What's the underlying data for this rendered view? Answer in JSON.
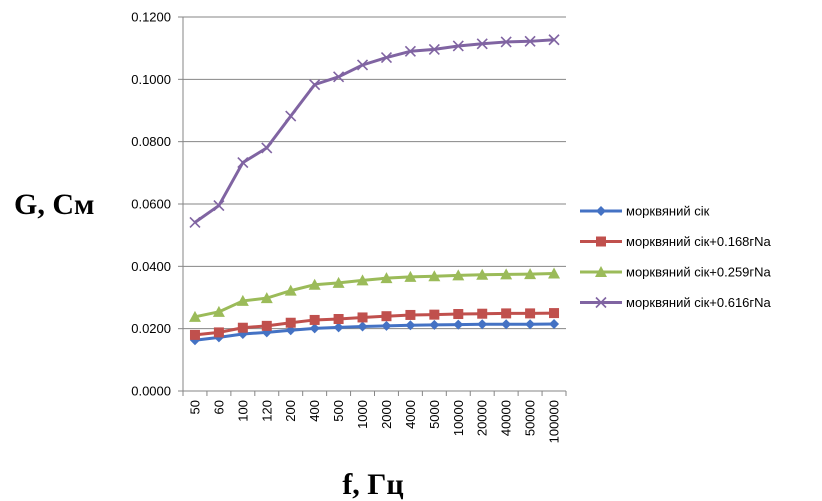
{
  "chart_data": {
    "type": "line",
    "title": "",
    "xlabel": "f, Гц",
    "ylabel": "G, См",
    "ylim": [
      0,
      0.12
    ],
    "yticks": [
      "0.0000",
      "0.0200",
      "0.0400",
      "0.0600",
      "0.0800",
      "0.1000",
      "0.1200"
    ],
    "grid": true,
    "legend_position": "right",
    "categories": [
      "50",
      "60",
      "100",
      "120",
      "200",
      "400",
      "500",
      "1000",
      "2000",
      "4000",
      "5000",
      "10000",
      "20000",
      "40000",
      "50000",
      "100000"
    ],
    "series": [
      {
        "name": "морквяний сік",
        "color": "#4472C4",
        "marker": "diamond",
        "values": [
          0.0163,
          0.0172,
          0.0183,
          0.0188,
          0.0195,
          0.0201,
          0.0204,
          0.0207,
          0.0209,
          0.0211,
          0.0212,
          0.0213,
          0.0214,
          0.0214,
          0.0214,
          0.0215
        ]
      },
      {
        "name": "морквяний сік+0.168гNa",
        "color": "#C0504D",
        "marker": "square",
        "values": [
          0.018,
          0.0188,
          0.0203,
          0.0209,
          0.0219,
          0.0228,
          0.0231,
          0.0236,
          0.024,
          0.0244,
          0.0245,
          0.0247,
          0.0248,
          0.0249,
          0.0249,
          0.025
        ]
      },
      {
        "name": "морквяний сік+0.259гNa",
        "color": "#9BBB59",
        "marker": "triangle",
        "values": [
          0.0238,
          0.0254,
          0.0289,
          0.0298,
          0.0322,
          0.0341,
          0.0347,
          0.0355,
          0.0362,
          0.0366,
          0.0368,
          0.0371,
          0.0373,
          0.0374,
          0.0375,
          0.0377
        ]
      },
      {
        "name": "морквяний сік+0.616гNa",
        "color": "#8064A2",
        "marker": "x",
        "values": [
          0.0541,
          0.0595,
          0.0733,
          0.078,
          0.0882,
          0.0983,
          0.1008,
          0.1046,
          0.107,
          0.109,
          0.1096,
          0.1107,
          0.1114,
          0.112,
          0.1122,
          0.1127
        ]
      }
    ]
  }
}
